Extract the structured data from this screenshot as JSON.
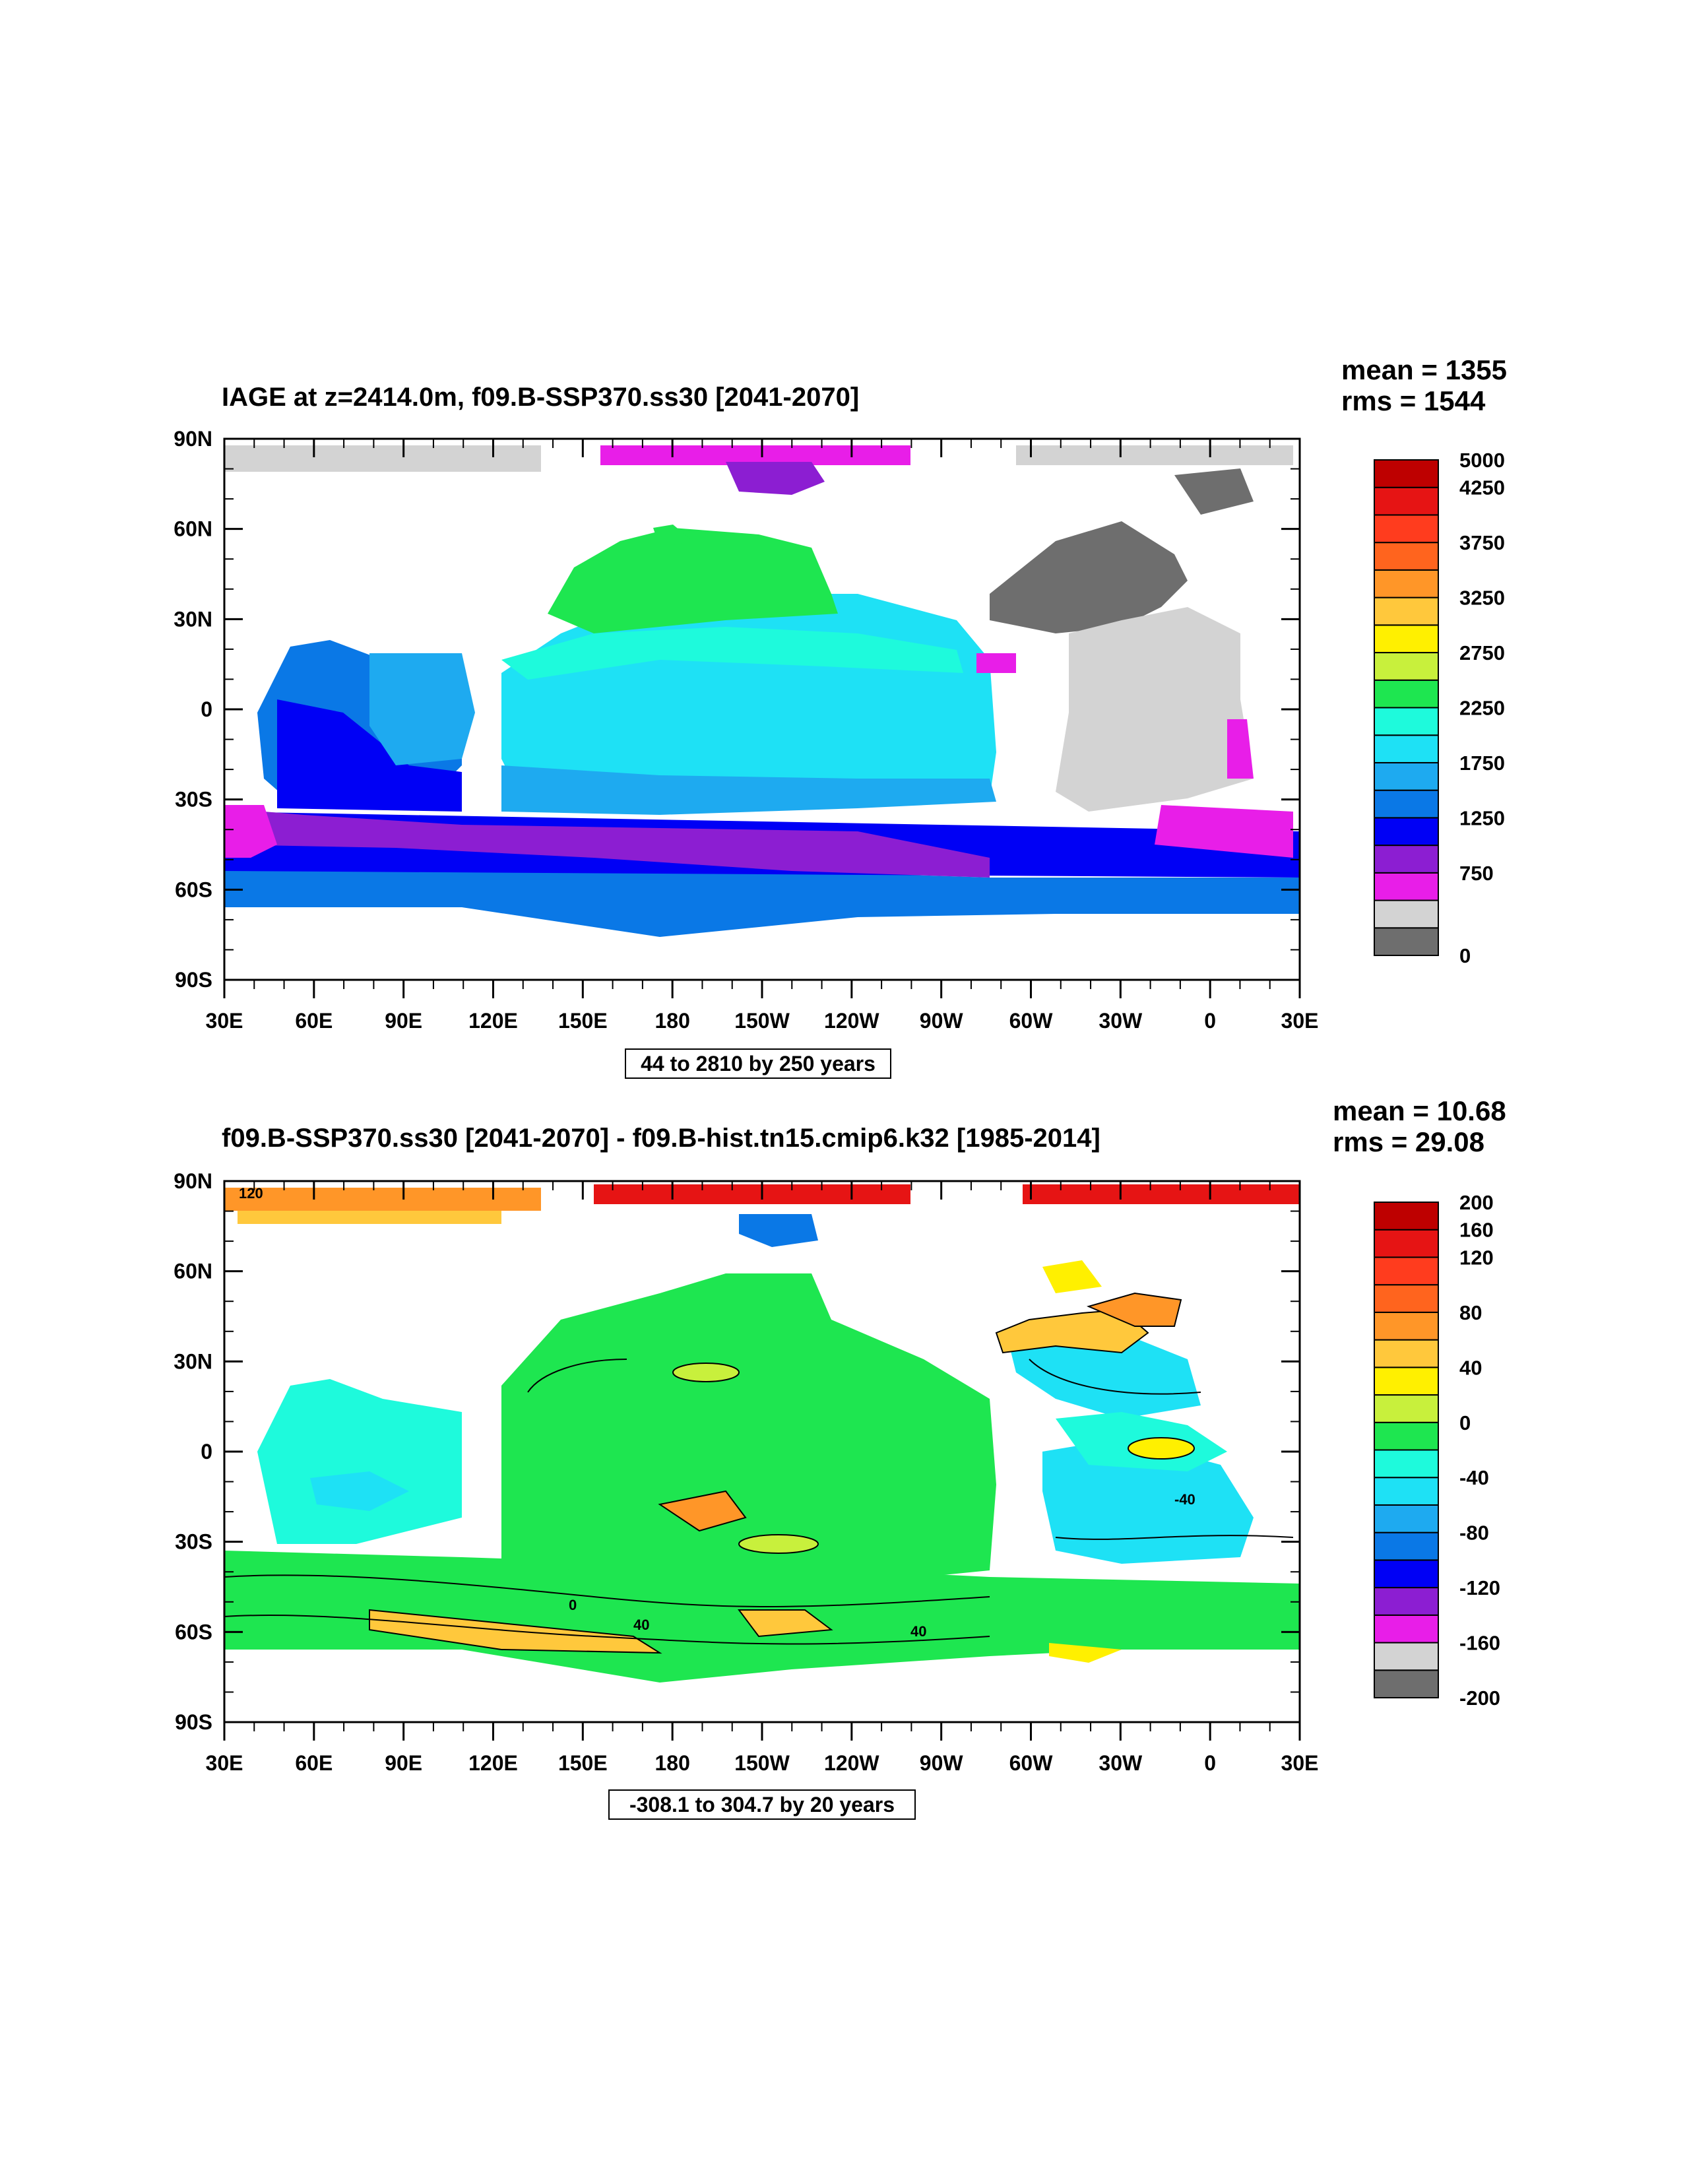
{
  "panels": [
    {
      "title": "IAGE at z=2414.0m, f09.B-SSP370.ss30 [2041-2070]",
      "mean": "mean = 1355",
      "rms": "rms = 1544",
      "info": "44 to 2810 by 250 years",
      "colorbar": {
        "colors": [
          "#6e6e6e",
          "#d3d3d3",
          "#e81ee8",
          "#8c1ed2",
          "#0000f5",
          "#0a78e6",
          "#1eaaf0",
          "#1ee1f5",
          "#1efadc",
          "#1ee650",
          "#c8f03c",
          "#fff000",
          "#ffc83c",
          "#ff9628",
          "#ff641e",
          "#ff3c1e",
          "#e61414",
          "#be0000"
        ],
        "labels": [
          "0",
          "750",
          "1250",
          "1750",
          "2250",
          "2750",
          "3250",
          "3750",
          "4250",
          "5000"
        ]
      }
    },
    {
      "title": "f09.B-SSP370.ss30 [2041-2070] - f09.B-hist.tn15.cmip6.k32 [1985-2014]",
      "mean": "mean = 10.68",
      "rms": "rms = 29.08",
      "info": "-308.1 to 304.7 by 20 years",
      "colorbar": {
        "colors": [
          "#6e6e6e",
          "#d3d3d3",
          "#e81ee8",
          "#8c1ed2",
          "#0000f5",
          "#0a78e6",
          "#1eaaf0",
          "#1ee1f5",
          "#1efadc",
          "#1ee650",
          "#c8f03c",
          "#fff000",
          "#ffc83c",
          "#ff9628",
          "#ff641e",
          "#ff3c1e",
          "#e61414",
          "#be0000"
        ],
        "labels": [
          "-200",
          "-160",
          "-120",
          "-80",
          "-40",
          "0",
          "40",
          "80",
          "120",
          "160",
          "200"
        ]
      },
      "contour_labels": [
        "120",
        "40",
        "40",
        "0",
        "-40"
      ]
    }
  ],
  "axes": {
    "lat_labels": [
      "90N",
      "60N",
      "30N",
      "0",
      "30S",
      "60S",
      "90S"
    ],
    "lon_labels": [
      "30E",
      "60E",
      "90E",
      "120E",
      "150E",
      "180",
      "150W",
      "120W",
      "90W",
      "60W",
      "30W",
      "0",
      "30E"
    ]
  }
}
